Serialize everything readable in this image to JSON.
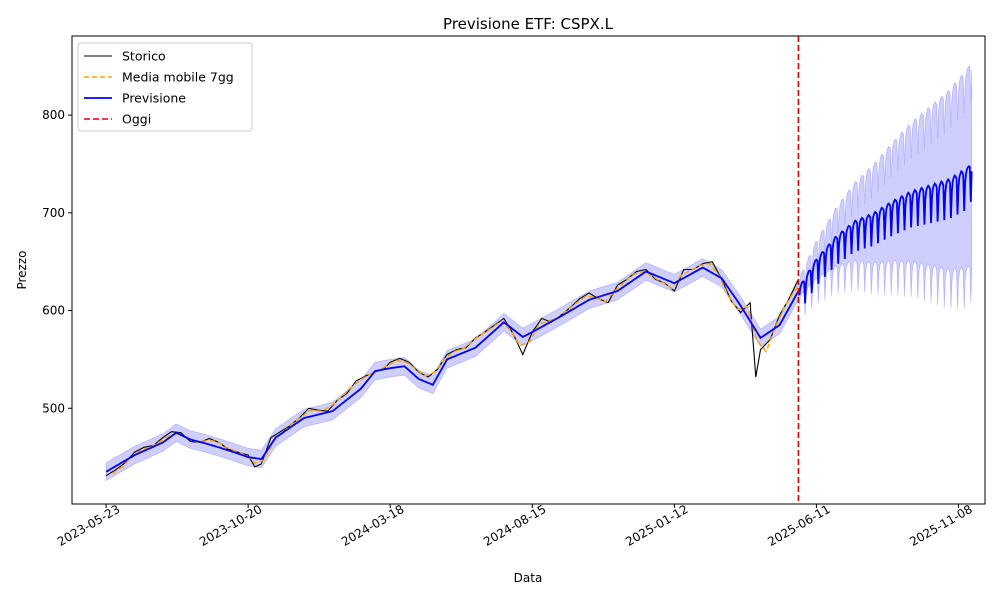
{
  "chart_data": {
    "type": "line",
    "title": "Previsione ETF: CSPX.L",
    "xlabel": "Data",
    "ylabel": "Prezzo",
    "xlim": [
      "2023-04-17",
      "2025-12-06"
    ],
    "ylim": [
      402,
      881
    ],
    "x_ticks": [
      "2023-05-23",
      "2023-10-20",
      "2024-03-18",
      "2024-08-15",
      "2025-01-12",
      "2025-06-11",
      "2025-11-08"
    ],
    "y_ticks": [
      500,
      600,
      700,
      800
    ],
    "legend": {
      "placement": "top-left"
    },
    "today": "2025-05-23",
    "colors": {
      "storico": "#000000",
      "media_mobile": "#ffa500",
      "previsione": "#0000ff",
      "band": "#6666ff",
      "oggi": "#dd0000"
    },
    "series": [
      {
        "name": "Storico",
        "style": "solid",
        "points": [
          [
            "2023-05-23",
            431
          ],
          [
            "2023-06-02",
            437
          ],
          [
            "2023-06-12",
            444
          ],
          [
            "2023-06-22",
            455
          ],
          [
            "2023-07-02",
            460
          ],
          [
            "2023-07-12",
            462
          ],
          [
            "2023-07-22",
            470
          ],
          [
            "2023-07-31",
            476
          ],
          [
            "2023-08-10",
            475
          ],
          [
            "2023-08-20",
            466
          ],
          [
            "2023-08-30",
            465
          ],
          [
            "2023-09-09",
            469
          ],
          [
            "2023-09-19",
            465
          ],
          [
            "2023-09-29",
            458
          ],
          [
            "2023-10-09",
            455
          ],
          [
            "2023-10-20",
            452
          ],
          [
            "2023-10-27",
            440
          ],
          [
            "2023-11-03",
            443
          ],
          [
            "2023-11-13",
            470
          ],
          [
            "2023-11-23",
            476
          ],
          [
            "2023-12-03",
            482
          ],
          [
            "2023-12-13",
            490
          ],
          [
            "2023-12-23",
            500
          ],
          [
            "2024-01-02",
            498
          ],
          [
            "2024-01-12",
            497
          ],
          [
            "2024-01-22",
            508
          ],
          [
            "2024-02-01",
            515
          ],
          [
            "2024-02-11",
            528
          ],
          [
            "2024-02-21",
            533
          ],
          [
            "2024-03-02",
            537
          ],
          [
            "2024-03-12",
            541
          ],
          [
            "2024-03-18",
            547
          ],
          [
            "2024-03-28",
            551
          ],
          [
            "2024-04-07",
            547
          ],
          [
            "2024-04-17",
            537
          ],
          [
            "2024-04-27",
            532
          ],
          [
            "2024-05-07",
            540
          ],
          [
            "2024-05-17",
            555
          ],
          [
            "2024-05-27",
            560
          ],
          [
            "2024-06-06",
            562
          ],
          [
            "2024-06-16",
            572
          ],
          [
            "2024-06-26",
            578
          ],
          [
            "2024-07-06",
            585
          ],
          [
            "2024-07-16",
            592
          ],
          [
            "2024-07-26",
            576
          ],
          [
            "2024-08-05",
            555
          ],
          [
            "2024-08-15",
            578
          ],
          [
            "2024-08-25",
            592
          ],
          [
            "2024-09-04",
            588
          ],
          [
            "2024-09-14",
            595
          ],
          [
            "2024-09-24",
            603
          ],
          [
            "2024-10-04",
            612
          ],
          [
            "2024-10-14",
            618
          ],
          [
            "2024-10-24",
            612
          ],
          [
            "2024-11-03",
            608
          ],
          [
            "2024-11-13",
            626
          ],
          [
            "2024-11-23",
            632
          ],
          [
            "2024-12-03",
            640
          ],
          [
            "2024-12-13",
            642
          ],
          [
            "2024-12-23",
            632
          ],
          [
            "2025-01-02",
            628
          ],
          [
            "2025-01-12",
            620
          ],
          [
            "2025-01-22",
            642
          ],
          [
            "2025-02-01",
            642
          ],
          [
            "2025-02-11",
            648
          ],
          [
            "2025-02-21",
            650
          ],
          [
            "2025-03-03",
            632
          ],
          [
            "2025-03-13",
            610
          ],
          [
            "2025-03-23",
            598
          ],
          [
            "2025-04-02",
            608
          ],
          [
            "2025-04-08",
            532
          ],
          [
            "2025-04-13",
            560
          ],
          [
            "2025-04-23",
            570
          ],
          [
            "2025-05-03",
            595
          ],
          [
            "2025-05-13",
            612
          ],
          [
            "2025-05-23",
            632
          ]
        ]
      },
      {
        "name": "Media mobile 7gg",
        "style": "dashed",
        "points": [
          [
            "2023-05-30",
            433
          ],
          [
            "2023-06-09",
            440
          ],
          [
            "2023-06-19",
            450
          ],
          [
            "2023-06-29",
            457
          ],
          [
            "2023-07-09",
            460
          ],
          [
            "2023-07-19",
            466
          ],
          [
            "2023-07-29",
            472
          ],
          [
            "2023-08-08",
            474
          ],
          [
            "2023-08-18",
            469
          ],
          [
            "2023-08-28",
            465
          ],
          [
            "2023-09-07",
            467
          ],
          [
            "2023-09-17",
            466
          ],
          [
            "2023-09-27",
            460
          ],
          [
            "2023-10-07",
            456
          ],
          [
            "2023-10-17",
            452
          ],
          [
            "2023-10-27",
            444
          ],
          [
            "2023-11-06",
            447
          ],
          [
            "2023-11-16",
            466
          ],
          [
            "2023-11-26",
            476
          ],
          [
            "2023-12-06",
            484
          ],
          [
            "2023-12-16",
            492
          ],
          [
            "2023-12-26",
            498
          ],
          [
            "2024-01-05",
            497
          ],
          [
            "2024-01-15",
            502
          ],
          [
            "2024-01-25",
            510
          ],
          [
            "2024-02-04",
            520
          ],
          [
            "2024-02-14",
            528
          ],
          [
            "2024-02-24",
            534
          ],
          [
            "2024-03-05",
            538
          ],
          [
            "2024-03-15",
            544
          ],
          [
            "2024-03-25",
            549
          ],
          [
            "2024-04-04",
            547
          ],
          [
            "2024-04-14",
            540
          ],
          [
            "2024-04-24",
            533
          ],
          [
            "2024-05-04",
            537
          ],
          [
            "2024-05-14",
            550
          ],
          [
            "2024-05-24",
            558
          ],
          [
            "2024-06-03",
            561
          ],
          [
            "2024-06-13",
            569
          ],
          [
            "2024-06-23",
            576
          ],
          [
            "2024-07-03",
            582
          ],
          [
            "2024-07-13",
            589
          ],
          [
            "2024-07-23",
            580
          ],
          [
            "2024-08-02",
            564
          ],
          [
            "2024-08-12",
            568
          ],
          [
            "2024-08-22",
            586
          ],
          [
            "2024-09-01",
            589
          ],
          [
            "2024-09-11",
            593
          ],
          [
            "2024-09-21",
            600
          ],
          [
            "2024-10-01",
            608
          ],
          [
            "2024-10-11",
            615
          ],
          [
            "2024-10-21",
            613
          ],
          [
            "2024-10-31",
            609
          ],
          [
            "2024-11-10",
            620
          ],
          [
            "2024-11-20",
            629
          ],
          [
            "2024-11-30",
            637
          ],
          [
            "2024-12-10",
            640
          ],
          [
            "2024-12-20",
            635
          ],
          [
            "2024-12-30",
            629
          ],
          [
            "2025-01-09",
            623
          ],
          [
            "2025-01-19",
            636
          ],
          [
            "2025-01-29",
            641
          ],
          [
            "2025-02-08",
            646
          ],
          [
            "2025-02-18",
            648
          ],
          [
            "2025-02-28",
            636
          ],
          [
            "2025-03-10",
            615
          ],
          [
            "2025-03-20",
            601
          ],
          [
            "2025-03-30",
            604
          ],
          [
            "2025-04-09",
            570
          ],
          [
            "2025-04-19",
            558
          ],
          [
            "2025-04-29",
            584
          ],
          [
            "2025-05-09",
            605
          ],
          [
            "2025-05-23",
            626
          ]
        ]
      },
      {
        "name": "Previsione",
        "style": "solid",
        "points": [
          [
            "2023-05-23",
            435
          ],
          [
            "2023-06-22",
            452
          ],
          [
            "2023-07-22",
            465
          ],
          [
            "2023-08-05",
            475
          ],
          [
            "2023-08-20",
            468
          ],
          [
            "2023-09-05",
            464
          ],
          [
            "2023-09-19",
            460
          ],
          [
            "2023-10-05",
            455
          ],
          [
            "2023-10-20",
            450
          ],
          [
            "2023-11-03",
            448
          ],
          [
            "2023-11-18",
            470
          ],
          [
            "2023-12-18",
            490
          ],
          [
            "2024-01-17",
            497
          ],
          [
            "2024-02-16",
            520
          ],
          [
            "2024-03-02",
            538
          ],
          [
            "2024-03-18",
            541
          ],
          [
            "2024-04-02",
            543
          ],
          [
            "2024-04-17",
            530
          ],
          [
            "2024-05-02",
            524
          ],
          [
            "2024-05-17",
            550
          ],
          [
            "2024-06-16",
            562
          ],
          [
            "2024-07-16",
            588
          ],
          [
            "2024-08-05",
            573
          ],
          [
            "2024-08-15",
            578
          ],
          [
            "2024-09-14",
            594
          ],
          [
            "2024-10-14",
            611
          ],
          [
            "2024-11-13",
            620
          ],
          [
            "2024-12-13",
            640
          ],
          [
            "2025-01-12",
            628
          ],
          [
            "2025-02-11",
            644
          ],
          [
            "2025-03-03",
            633
          ],
          [
            "2025-03-23",
            605
          ],
          [
            "2025-04-13",
            572
          ],
          [
            "2025-05-03",
            585
          ],
          [
            "2025-05-23",
            620
          ],
          [
            "2025-06-11",
            650
          ],
          [
            "2025-07-01",
            672
          ],
          [
            "2025-07-21",
            688
          ],
          [
            "2025-08-10",
            696
          ],
          [
            "2025-08-30",
            708
          ],
          [
            "2025-09-19",
            718
          ],
          [
            "2025-10-09",
            724
          ],
          [
            "2025-10-29",
            730
          ],
          [
            "2025-11-18",
            742
          ],
          [
            "2025-11-22",
            752
          ]
        ]
      }
    ],
    "annotations": [
      {
        "name": "Oggi",
        "type": "vline",
        "x": "2025-05-23"
      }
    ]
  }
}
